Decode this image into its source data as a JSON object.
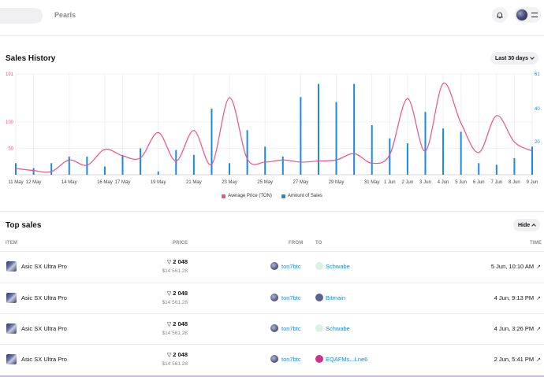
{
  "nav": {
    "pearls": "Pearls"
  },
  "sales_history": {
    "title": "Sales History",
    "range_label": "Last 30 days",
    "legend": {
      "price": "Average Price (TON)",
      "amount": "Amount of Sales"
    }
  },
  "chart_data": {
    "type": "line",
    "x_ticks": [
      "11 May",
      "12 May",
      "14 May",
      "16 May",
      "17 May",
      "19 May",
      "21 May",
      "23 May",
      "25 May",
      "27 May",
      "29 May",
      "31 May",
      "1 Jun",
      "2 Jun",
      "3 Jun",
      "4 Jun",
      "5 Jun",
      "6 Jun",
      "7 Jun",
      "8 Jun",
      "9 Jun"
    ],
    "y_left_ticks": [
      "191",
      "100",
      "50"
    ],
    "y_right_ticks": [
      "61",
      "40",
      "20"
    ],
    "y_left_lim": [
      0,
      191
    ],
    "y_right_lim": [
      0,
      61
    ],
    "colors": {
      "price": "#f0508a",
      "amount": "#1a8ae6"
    },
    "days": [
      "11 May",
      "12 May",
      "13 May",
      "14 May",
      "15 May",
      "16 May",
      "17 May",
      "18 May",
      "19 May",
      "20 May",
      "21 May",
      "22 May",
      "23 May",
      "24 May",
      "25 May",
      "26 May",
      "27 May",
      "28 May",
      "29 May",
      "30 May",
      "31 May",
      "1 Jun",
      "2 Jun",
      "3 Jun",
      "4 Jun",
      "5 Jun",
      "6 Jun",
      "7 Jun",
      "8 Jun",
      "9 Jun"
    ],
    "series": [
      {
        "name": "Average Price (TON)",
        "axis": "left",
        "values": [
          12,
          8,
          6,
          28,
          18,
          48,
          36,
          32,
          80,
          26,
          84,
          20,
          146,
          30,
          24,
          28,
          24,
          26,
          28,
          40,
          22,
          38,
          144,
          45,
          173,
          98,
          42,
          112,
          62,
          45
        ]
      },
      {
        "name": "Amount of Sales",
        "axis": "right",
        "values": [
          7,
          4,
          7,
          11,
          11,
          5,
          12,
          16,
          2,
          15,
          12,
          40,
          7,
          27,
          17,
          11,
          47,
          55,
          44,
          55,
          30,
          22,
          19,
          38,
          28,
          26,
          7,
          6,
          10,
          17
        ]
      }
    ]
  },
  "top_sales": {
    "title": "Top sales",
    "hide_label": "Hide",
    "columns": {
      "item": "ITEM",
      "price": "PRICE",
      "from": "FROM",
      "to": "TO",
      "time": "TIME"
    },
    "rows": [
      {
        "item": "Asic SX Ultra Pro",
        "price_ton": "2 048",
        "price_usd": "$14 561.28",
        "from": "ton7btc",
        "to": "Schwabe",
        "to_color": "#d9f2e4",
        "time": "5 Jun, 10:10 AM"
      },
      {
        "item": "Asic SX Ultra Pro",
        "price_ton": "2 048",
        "price_usd": "$14 561.28",
        "from": "ton7btc",
        "to": "Bitmain",
        "to_color": "#5b6290",
        "time": "4 Jun, 9:13 PM"
      },
      {
        "item": "Asic SX Ultra Pro",
        "price_ton": "2 048",
        "price_usd": "$14 561.28",
        "from": "ton7btc",
        "to": "Schwabe",
        "to_color": "#d9f2e4",
        "time": "4 Jun, 3:26 PM"
      },
      {
        "item": "Asic SX Ultra Pro",
        "price_ton": "2 048",
        "price_usd": "$14 561.28",
        "from": "ton7btc",
        "to": "EQAFMs...Lne6",
        "to_color": "#d0308a",
        "time": "2 Jun, 5:41 PM"
      }
    ]
  }
}
